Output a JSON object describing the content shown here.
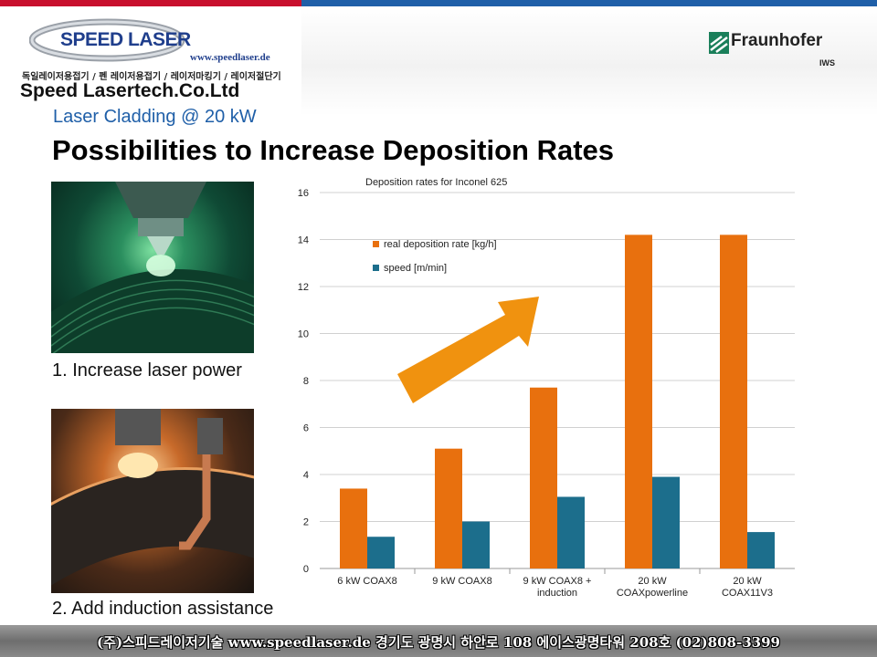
{
  "header": {
    "brand_logo_text": "SPEED LASER",
    "brand_url": "www.speedlaser.de",
    "brand_tagline_ko": "독일레이저용접기 / 펜 레이저용접기 / 레이저마킹기 / 레이저절단기",
    "company_name": "Speed Lasertech.Co.Ltd",
    "partner_name": "Fraunhofer",
    "partner_unit": "IWS",
    "colors": {
      "red_bar": "#c8102e",
      "blue_bar": "#1f5fa8",
      "fraunhofer_green": "#1a7f5a"
    }
  },
  "slide": {
    "subtitle": "Laser Cladding @ 20 kW",
    "title": "Possibilities to Increase Deposition Rates",
    "caption_1": "1. Increase laser power",
    "caption_2": "2. Add induction assistance"
  },
  "chart_data": {
    "type": "bar",
    "title": "Deposition rates for Inconel 625",
    "categories": [
      [
        "6 kW COAX8"
      ],
      [
        "9 kW COAX8"
      ],
      [
        "9 kW COAX8 +",
        "induction"
      ],
      [
        "20 kW",
        "COAXpowerline"
      ],
      [
        "20 kW",
        "COAX11V3"
      ]
    ],
    "series": [
      {
        "name": "real deposition rate [kg/h]",
        "color": "#e8700e",
        "values": [
          3.4,
          5.1,
          7.7,
          14.2,
          14.2
        ]
      },
      {
        "name": "speed [m/min]",
        "color": "#1c6e8c",
        "values": [
          1.35,
          2.0,
          3.05,
          3.9,
          1.55
        ]
      }
    ],
    "ylim": [
      0,
      16
    ],
    "yticks": [
      0,
      2,
      4,
      6,
      8,
      10,
      12,
      14,
      16
    ],
    "grid": true,
    "legend_position": "top-left",
    "annotation": "orange upward arrow",
    "arrow_color": "#f0920f"
  },
  "footer": {
    "text": "(주)스피드레이저기술  www.speedlaser.de   경기도 광명시 하안로 108 에이스광명타워 208호 (02)808-3399"
  }
}
